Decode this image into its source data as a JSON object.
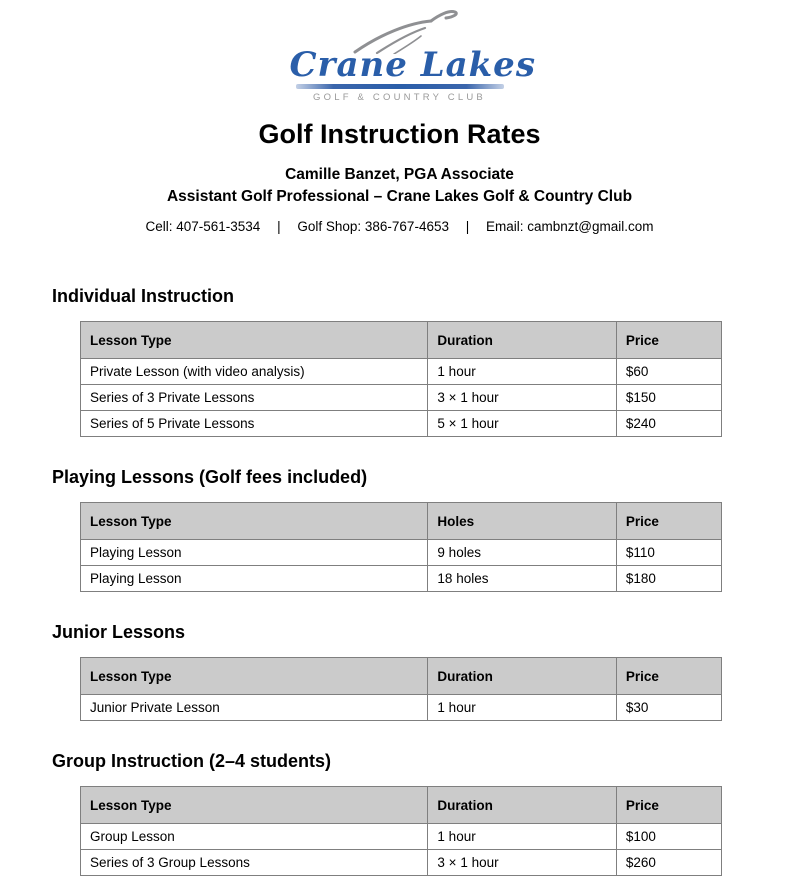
{
  "logo": {
    "name": "Crane Lakes",
    "tagline": "GOLF & COUNTRY CLUB"
  },
  "header": {
    "title": "Golf Instruction Rates",
    "subtitle1": "Camille Banzet, PGA Associate",
    "subtitle2": "Assistant Golf Professional – Crane Lakes Golf & Country Club",
    "contact": {
      "cell": "Cell: 407-561-3534",
      "separator1": "|",
      "golf_shop": "Golf Shop: 386-767-4653",
      "separator2": "|",
      "email": "Email: cambnzt@gmail.com"
    }
  },
  "sections": [
    {
      "heading": "Individual Instruction",
      "columns": [
        "Lesson Type",
        "Duration",
        "Price"
      ],
      "rows": [
        [
          "Private Lesson (with video analysis)",
          "1 hour",
          "$60"
        ],
        [
          "Series of 3 Private Lessons",
          "3 × 1 hour",
          "$150"
        ],
        [
          "Series of 5 Private Lessons",
          "5 × 1 hour",
          "$240"
        ]
      ]
    },
    {
      "heading": "Playing Lessons (Golf fees included)",
      "columns": [
        "Lesson Type",
        "Holes",
        "Price"
      ],
      "rows": [
        [
          "Playing Lesson",
          "9 holes",
          "$110"
        ],
        [
          "Playing Lesson",
          "18 holes",
          "$180"
        ]
      ]
    },
    {
      "heading": "Junior Lessons",
      "columns": [
        "Lesson Type",
        "Duration",
        "Price"
      ],
      "rows": [
        [
          "Junior Private Lesson",
          "1 hour",
          "$30"
        ]
      ]
    },
    {
      "heading": "Group Instruction (2–4 students)",
      "columns": [
        "Lesson Type",
        "Duration",
        "Price"
      ],
      "rows": [
        [
          "Group Lesson",
          "1 hour",
          "$100"
        ],
        [
          "Series of 3 Group Lessons",
          "3 × 1 hour",
          "$260"
        ]
      ]
    }
  ],
  "colors": {
    "table_header_bg": "#cbcbcb",
    "table_border": "#7f7f7f",
    "logo_blue": "#2a5ea9",
    "logo_gray": "#8f9093",
    "tagline_gray": "#9a9a9a"
  }
}
